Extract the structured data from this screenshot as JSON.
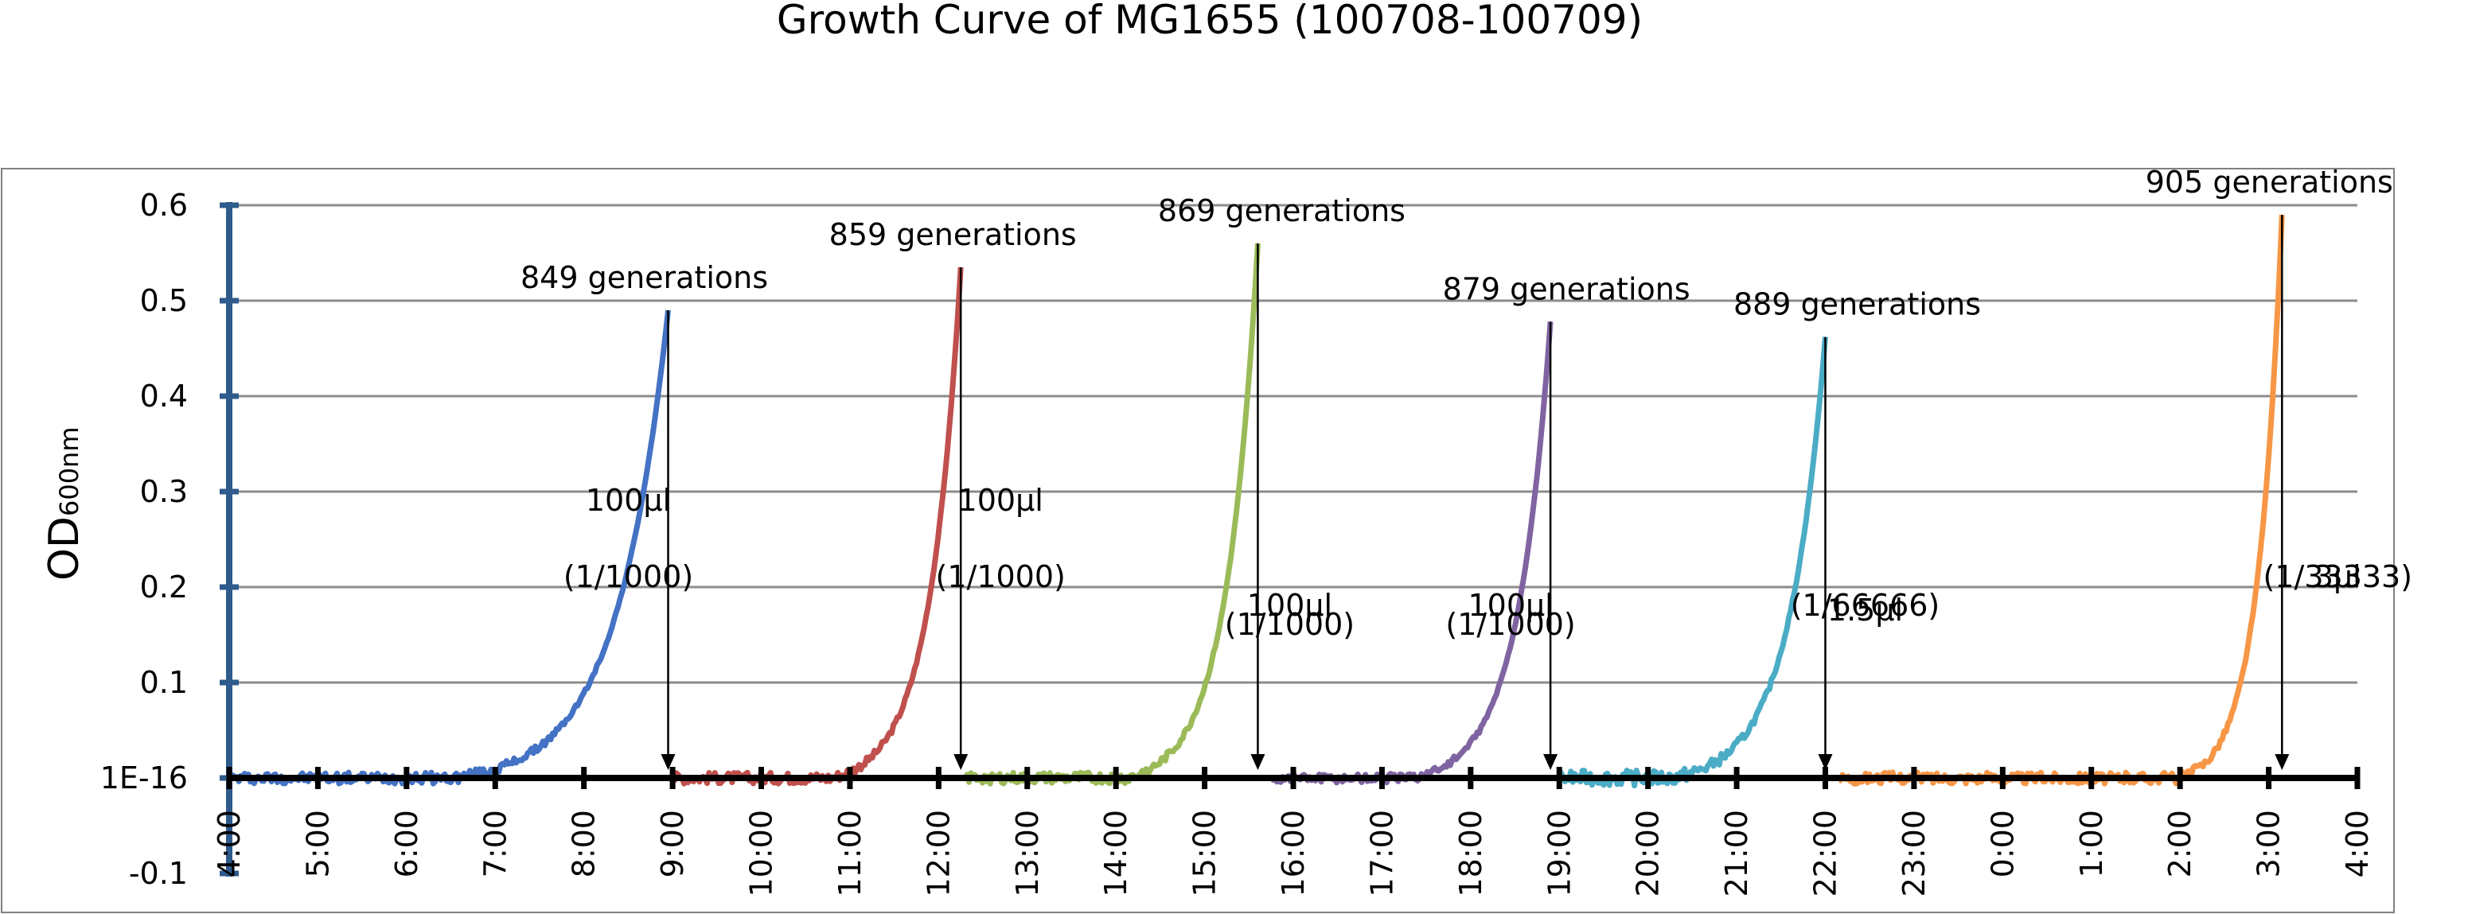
{
  "chart_data": {
    "type": "line",
    "title": "Growth Curve of MG1655 (100708-100709)",
    "ylabel_main": "OD",
    "ylabel_sub": "600nm",
    "ylim": [
      -0.1,
      0.6
    ],
    "yticks": [
      -0.1,
      0,
      0.1,
      0.2,
      0.3,
      0.4,
      0.5,
      0.6
    ],
    "ytick_labels": [
      "-0.1",
      "1E-16",
      "0.1",
      "0.2",
      "0.3",
      "0.4",
      "0.5",
      "0.6"
    ],
    "xlim": [
      4,
      28
    ],
    "xticks": [
      4,
      5,
      6,
      7,
      8,
      9,
      10,
      11,
      12,
      13,
      14,
      15,
      16,
      17,
      18,
      19,
      20,
      21,
      22,
      23,
      24,
      25,
      26,
      27,
      28
    ],
    "xtick_labels": [
      "4:00",
      "5:00",
      "6:00",
      "7:00",
      "8:00",
      "9:00",
      "10:00",
      "11:00",
      "12:00",
      "13:00",
      "14:00",
      "15:00",
      "16:00",
      "17:00",
      "18:00",
      "19:00",
      "20:00",
      "21:00",
      "22:00",
      "23:00",
      "0:00",
      "1:00",
      "2:00",
      "3:00",
      "4:00"
    ],
    "grid": true,
    "series": [
      {
        "color": "#4472C4",
        "start": 4.0,
        "end": 8.95,
        "peak": 0.49,
        "lag": 0.51,
        "noise": 0.006
      },
      {
        "color": "#C0504D",
        "start": 9.0,
        "end": 12.25,
        "peak": 0.535,
        "lag": 0.55,
        "noise": 0.006
      },
      {
        "color": "#9BBB59",
        "start": 12.3,
        "end": 15.6,
        "peak": 0.56,
        "lag": 0.55,
        "noise": 0.006
      },
      {
        "color": "#8064A2",
        "start": 15.75,
        "end": 18.9,
        "peak": 0.478,
        "lag": 0.5,
        "noise": 0.005
      },
      {
        "color": "#4BACC6",
        "start": 19.0,
        "end": 22.0,
        "peak": 0.462,
        "lag": 0.42,
        "noise": 0.008
      },
      {
        "color": "#F79646",
        "start": 22.15,
        "end": 27.15,
        "peak": 0.59,
        "lag": 0.77,
        "noise": 0.006
      }
    ],
    "annotations": [
      {
        "generations": "849 generations",
        "volume": "100μl",
        "dilution": "(1/1000)",
        "x": 8.95,
        "peak": 0.49
      },
      {
        "generations": "859 generations",
        "volume": "100μl",
        "dilution": "(1/1000)",
        "x": 12.25,
        "peak": 0.535
      },
      {
        "generations": "869 generations",
        "volume": "100μl",
        "dilution": "(1/1000)",
        "x": 15.6,
        "peak": 0.56
      },
      {
        "generations": "879 generations",
        "volume": "100μl",
        "dilution": "(1/1000)",
        "x": 18.9,
        "peak": 0.478
      },
      {
        "generations": "889 generations",
        "volume": "1.5μl",
        "dilution": "(1/66666)",
        "x": 22.0,
        "peak": 0.462
      },
      {
        "generations": "905 generations",
        "volume": "3μl",
        "dilution": "(1/33333)",
        "x": 27.15,
        "peak": 0.59
      }
    ]
  }
}
